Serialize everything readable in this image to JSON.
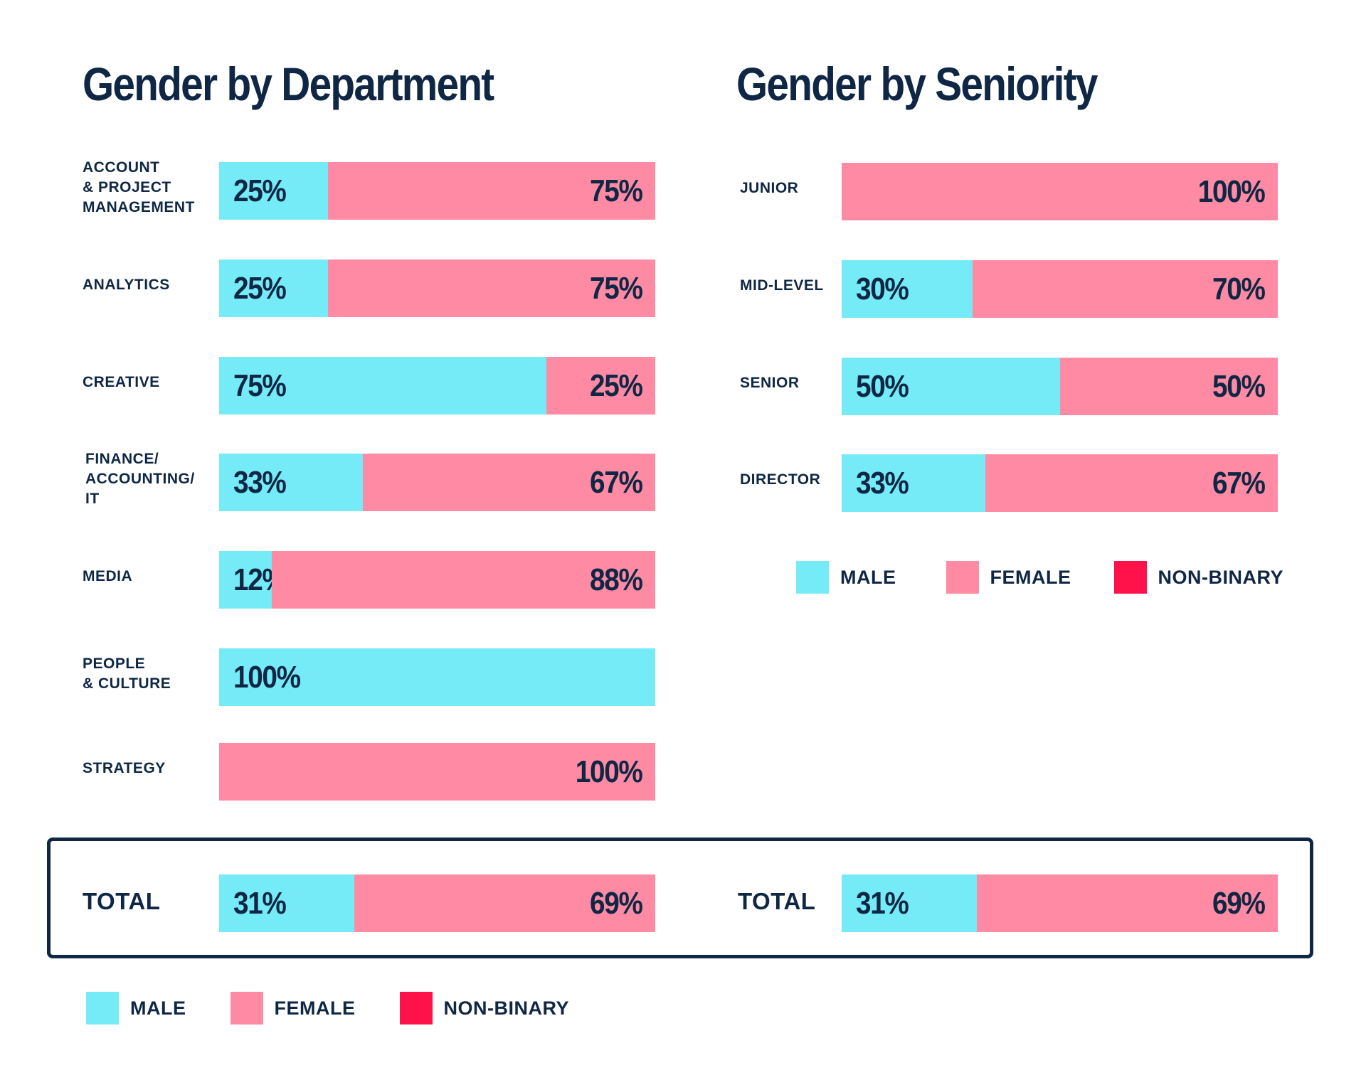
{
  "colors": {
    "male": "#74ebf7",
    "female": "#fe8ba3",
    "non_binary": "#fe1249",
    "text": "#0f2744"
  },
  "legend": [
    "MALE",
    "FEMALE",
    "NON-BINARY"
  ],
  "chart_data": [
    {
      "type": "bar",
      "orientation": "horizontal",
      "stacked": true,
      "title": "Gender by Department",
      "categories": [
        "ACCOUNT\n& PROJECT\nMANAGEMENT",
        "ANALYTICS",
        "CREATIVE",
        "FINANCE/\nACCOUNTING/\nIT",
        "MEDIA",
        "PEOPLE\n& CULTURE",
        "STRATEGY"
      ],
      "series": [
        {
          "name": "MALE",
          "values": [
            25,
            25,
            75,
            33,
            12,
            100,
            0
          ]
        },
        {
          "name": "FEMALE",
          "values": [
            75,
            75,
            25,
            67,
            88,
            0,
            100
          ]
        }
      ],
      "labels": [
        [
          "25%",
          "75%"
        ],
        [
          "25%",
          "75%"
        ],
        [
          "75%",
          "25%"
        ],
        [
          "33%",
          "67%"
        ],
        [
          "12%",
          "88%"
        ],
        [
          "100%",
          ""
        ],
        [
          "",
          "100%"
        ]
      ],
      "total": {
        "label": "TOTAL",
        "values": [
          31,
          69
        ],
        "labels": [
          "31%",
          "69%"
        ]
      }
    },
    {
      "type": "bar",
      "orientation": "horizontal",
      "stacked": true,
      "title": "Gender by Seniority",
      "categories": [
        "JUNIOR",
        "MID-LEVEL",
        "SENIOR",
        "DIRECTOR"
      ],
      "series": [
        {
          "name": "MALE",
          "values": [
            0,
            30,
            50,
            33
          ]
        },
        {
          "name": "FEMALE",
          "values": [
            100,
            70,
            50,
            67
          ]
        }
      ],
      "labels": [
        [
          "",
          "100%"
        ],
        [
          "30%",
          "70%"
        ],
        [
          "50%",
          "50%"
        ],
        [
          "33%",
          "67%"
        ]
      ],
      "total": {
        "label": "TOTAL",
        "values": [
          31,
          69
        ],
        "labels": [
          "31%",
          "69%"
        ]
      }
    }
  ]
}
